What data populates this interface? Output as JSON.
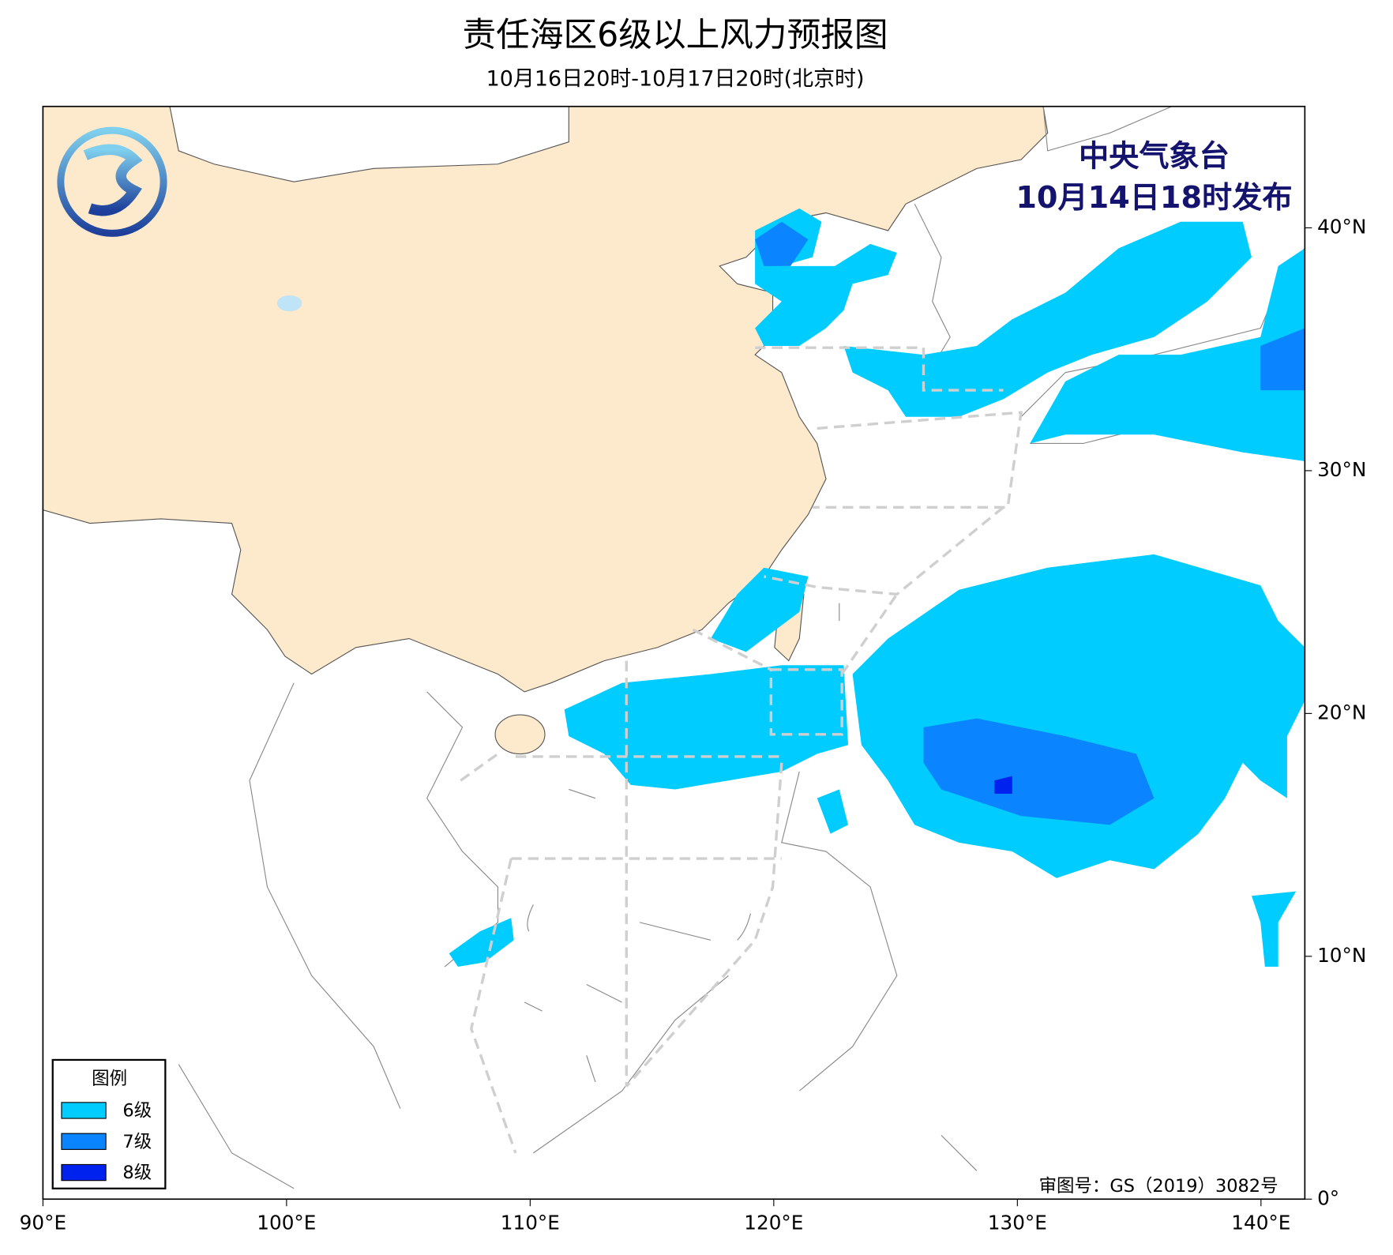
{
  "header": {
    "title": "责任海区6级以上风力预报图",
    "subtitle": "10月16日20时-10月17日20时(北京时)"
  },
  "issuer": {
    "name": "中央气象台",
    "time": "10月14日18时发布"
  },
  "legend": {
    "title": "图例",
    "items": [
      {
        "label": "6级",
        "color": "#00ccff"
      },
      {
        "label": "7级",
        "color": "#0a84ff"
      },
      {
        "label": "8级",
        "color": "#0022ee"
      }
    ]
  },
  "approval": "审图号：GS（2019）3082号",
  "map": {
    "xlim": [
      90,
      141.8
    ],
    "ylim": [
      0,
      45
    ],
    "xticks": [
      {
        "value": 90,
        "label": "90°E"
      },
      {
        "value": 100,
        "label": "100°E"
      },
      {
        "value": 110,
        "label": "110°E"
      },
      {
        "value": 120,
        "label": "120°E"
      },
      {
        "value": 130,
        "label": "130°E"
      },
      {
        "value": 140,
        "label": "140°E"
      }
    ],
    "yticks": [
      {
        "value": 0,
        "label": "0°"
      },
      {
        "value": 10,
        "label": "10°N"
      },
      {
        "value": 20,
        "label": "20°N"
      },
      {
        "value": 30,
        "label": "30°N"
      },
      {
        "value": 40,
        "label": "40°N"
      }
    ]
  }
}
